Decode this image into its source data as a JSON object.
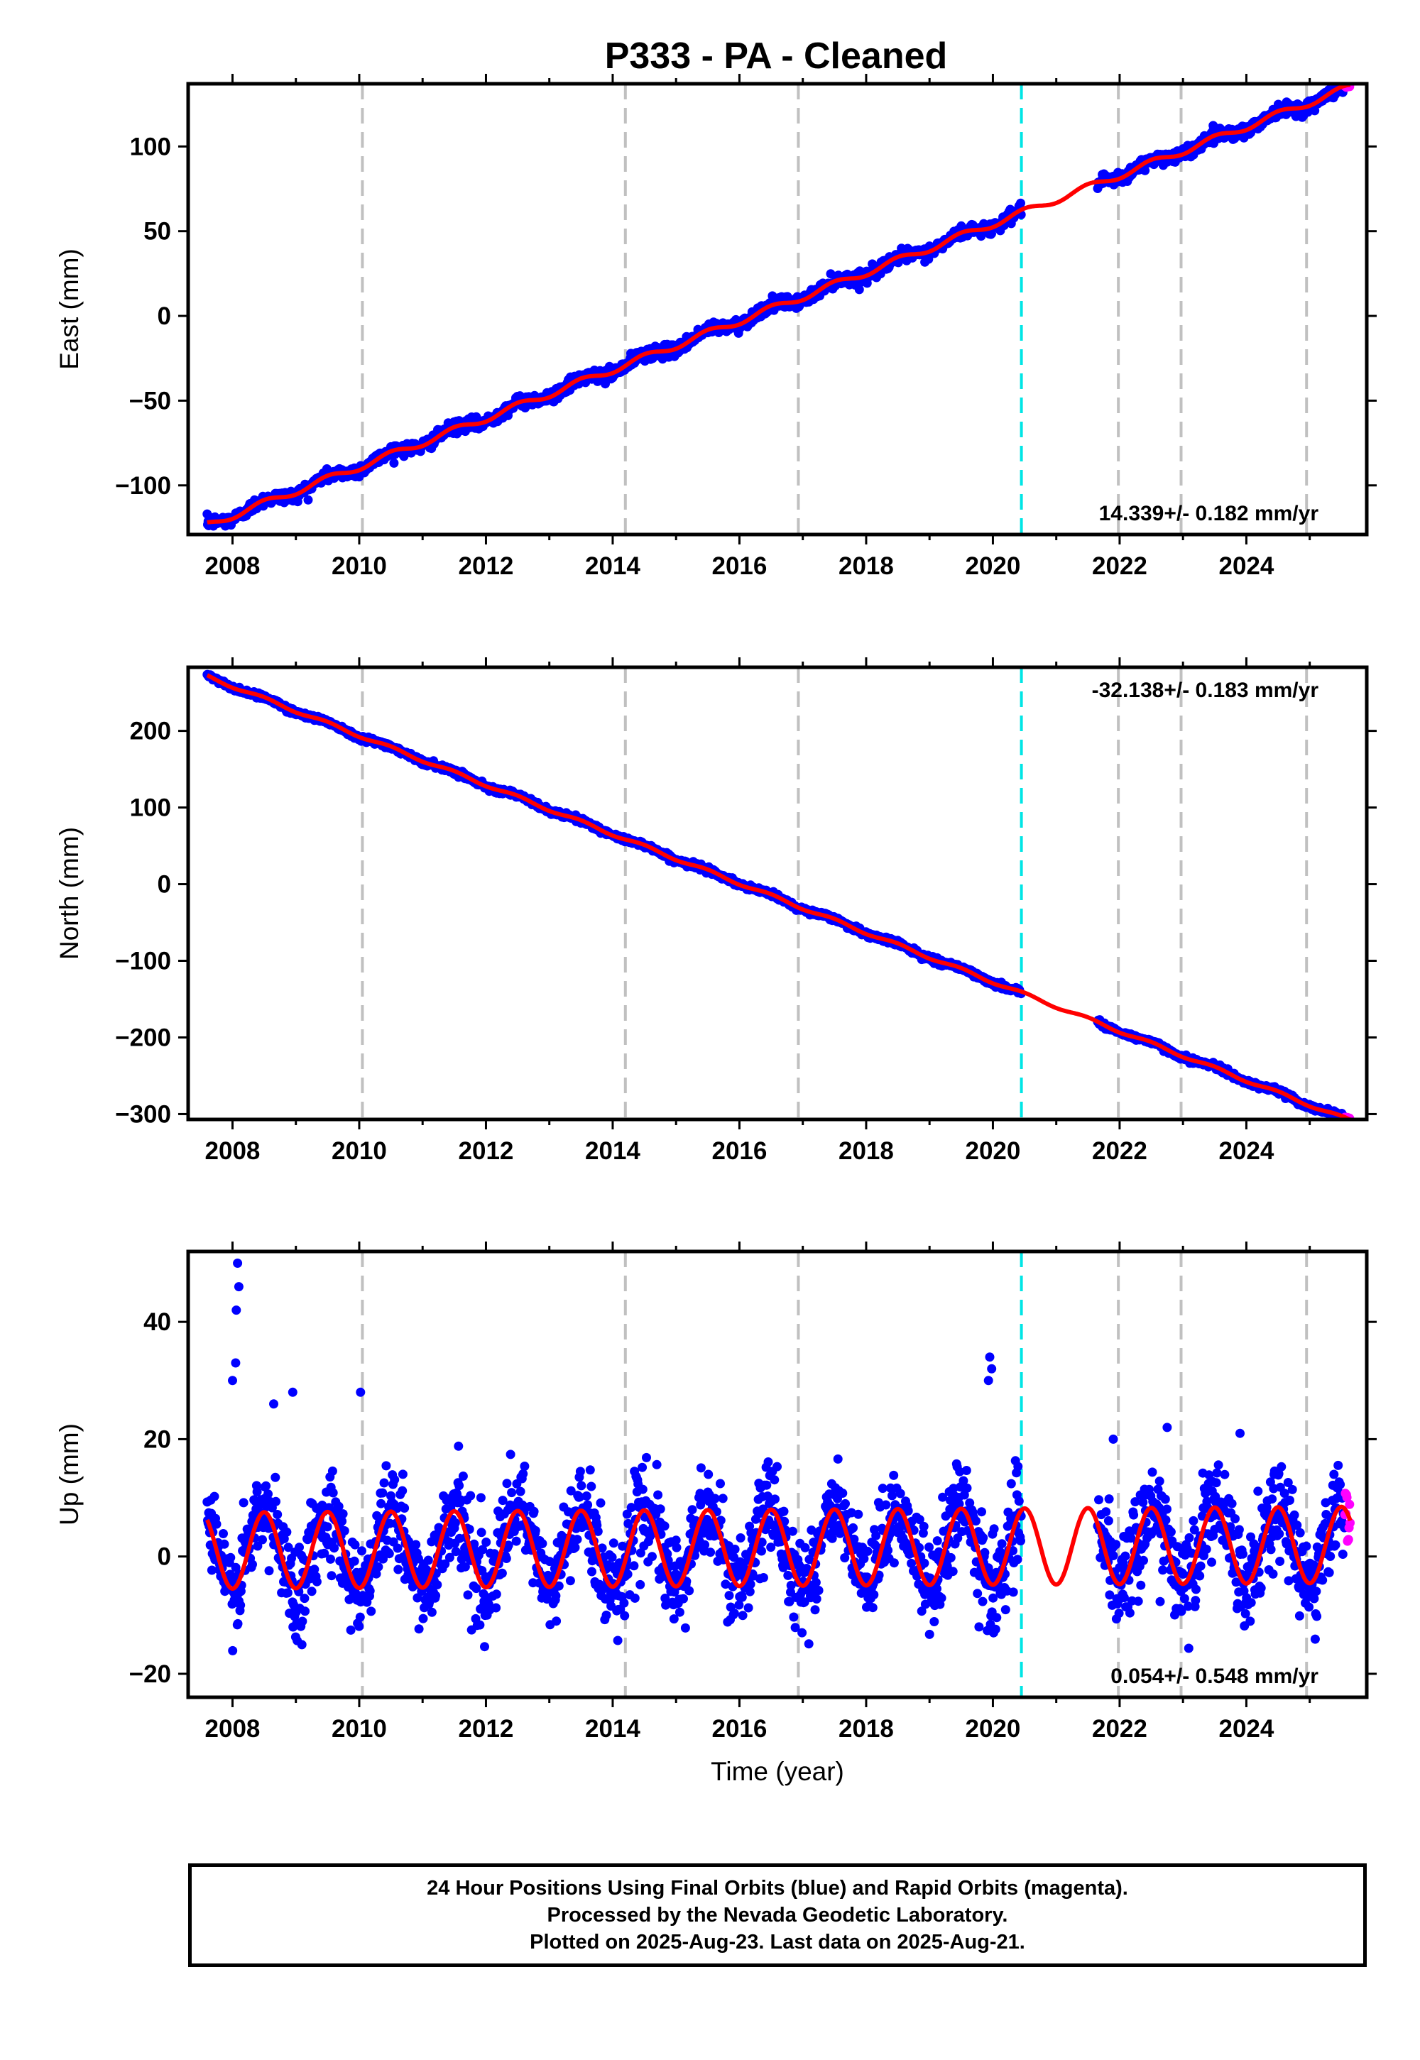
{
  "title": "P333  - PA - Cleaned",
  "colors": {
    "final_orbits": "#0000ff",
    "rapid_orbits": "#ff00ff",
    "model": "#ff0000",
    "equipment_change": "#00e5e5",
    "gap_marker": "#c0c0c0"
  },
  "chart_data": [
    {
      "type": "scatter",
      "name": "east",
      "ylabel": "East (mm)",
      "xlim": [
        2007.3,
        2025.9
      ],
      "ylim": [
        -129,
        137
      ],
      "x_ticks": [
        2008,
        2010,
        2012,
        2014,
        2016,
        2018,
        2020,
        2022,
        2024
      ],
      "y_ticks": [
        -100,
        -50,
        0,
        50,
        100
      ],
      "rate_label": "14.339+/- 0.182 mm/yr",
      "rate_position": "bottom-right",
      "data_start": 2007.6,
      "data_gap": [
        2020.45,
        2021.65
      ],
      "rapid_start": 2025.55,
      "data_end": 2025.64,
      "model": {
        "type": "linear+seasonal",
        "value_at_start": -123.5,
        "rate_mm_per_yr": 14.339,
        "seasonal_amplitude_mm": 2.0,
        "scatter_sigma_mm": 1.8
      }
    },
    {
      "type": "scatter",
      "name": "north",
      "ylabel": "North (mm)",
      "xlim": [
        2007.3,
        2025.9
      ],
      "ylim": [
        -307,
        283
      ],
      "x_ticks": [
        2008,
        2010,
        2012,
        2014,
        2016,
        2018,
        2020,
        2022,
        2024
      ],
      "y_ticks": [
        -300,
        -200,
        -100,
        0,
        100,
        200
      ],
      "rate_label": "-32.138+/- 0.183 mm/yr",
      "rate_position": "top-right",
      "data_start": 2007.6,
      "data_gap": [
        2020.45,
        2021.65
      ],
      "rapid_start": 2025.55,
      "data_end": 2025.64,
      "model": {
        "type": "linear+seasonal",
        "value_at_start": 271,
        "rate_mm_per_yr": -32.138,
        "seasonal_amplitude_mm": 2.0,
        "scatter_sigma_mm": 1.8
      }
    },
    {
      "type": "scatter",
      "name": "up",
      "ylabel": "Up (mm)",
      "xlabel": "Time (year)",
      "xlim": [
        2007.3,
        2025.9
      ],
      "ylim": [
        -24,
        52
      ],
      "x_ticks": [
        2008,
        2010,
        2012,
        2014,
        2016,
        2018,
        2020,
        2022,
        2024
      ],
      "y_ticks": [
        -20,
        0,
        20,
        40
      ],
      "rate_label": "0.054+/- 0.548 mm/yr",
      "rate_position": "bottom-right",
      "data_start": 2007.6,
      "data_gap": [
        2020.45,
        2021.65
      ],
      "rapid_start": 2025.55,
      "data_end": 2025.64,
      "model": {
        "type": "linear+seasonal",
        "value_at_start": 1.0,
        "rate_mm_per_yr": 0.054,
        "seasonal_amplitude_mm": 6.5,
        "scatter_sigma_mm": 4.0
      },
      "outliers": [
        [
          2008.08,
          50
        ],
        [
          2008.1,
          46
        ],
        [
          2008.06,
          42
        ],
        [
          2008.05,
          33
        ],
        [
          2008.0,
          30
        ],
        [
          2008.65,
          26
        ],
        [
          2008.95,
          28
        ],
        [
          2010.02,
          28
        ],
        [
          2019.95,
          34
        ],
        [
          2019.98,
          32
        ],
        [
          2019.93,
          30
        ],
        [
          2021.9,
          20
        ],
        [
          2022.75,
          22
        ],
        [
          2023.9,
          21
        ]
      ]
    }
  ],
  "equipment_changes": [
    2020.45
  ],
  "gap_markers": [
    2010.05,
    2014.2,
    2016.93,
    2021.98,
    2022.97,
    2024.95
  ],
  "footer": {
    "line1": "24 Hour Positions Using Final Orbits (blue) and Rapid Orbits (magenta).",
    "line2": "Processed by the Nevada Geodetic Laboratory.",
    "line3": "Plotted on 2025-Aug-23. Last data on 2025-Aug-21."
  }
}
